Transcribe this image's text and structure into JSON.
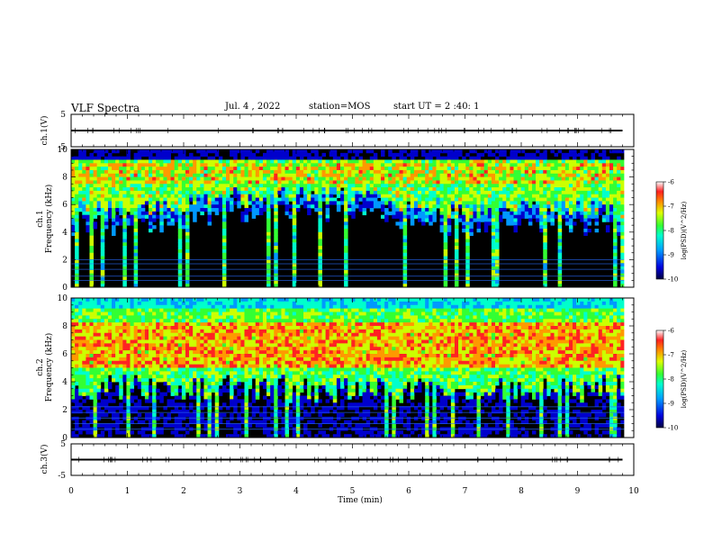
{
  "header": {
    "title": "VLF Spectra",
    "date": "Jul. 4 , 2022",
    "station": "station=MOS",
    "start": "start UT = 2 :40: 1"
  },
  "chart_data": [
    {
      "type": "line",
      "panel": "ch1-waveform",
      "ylabel": "ch.1(V)",
      "ylim": [
        -5,
        5
      ],
      "yticks": [
        "5",
        "-5"
      ],
      "xlim": [
        0,
        10
      ],
      "series": [
        {
          "values": [
            0,
            0,
            0,
            0,
            0,
            0,
            0,
            0,
            0,
            0,
            0
          ]
        }
      ],
      "x": [
        0,
        1,
        2,
        3,
        4,
        5,
        6,
        7,
        8,
        9,
        9.8
      ]
    },
    {
      "type": "heatmap",
      "panel": "ch1-spectrogram",
      "ylabel": "ch.1\nFrequency (kHz)",
      "ylim": [
        0,
        10
      ],
      "yticks": [
        "0",
        "2",
        "4",
        "6",
        "8",
        "10"
      ],
      "xlim": [
        0,
        10
      ],
      "colorbar": {
        "label": "log(PSD)(V^2/Hz)",
        "ticks": [
          "-6",
          "-7",
          "-8",
          "-9",
          "-10"
        ],
        "range": [
          -10,
          -6
        ]
      },
      "time_min": [
        0,
        1,
        2,
        3,
        4,
        5,
        6,
        7,
        8,
        9,
        9.8
      ],
      "upper_band_khz": [
        5.8,
        5.5,
        6.0,
        6.5,
        7.0,
        6.5,
        6.0,
        5.5,
        6.0,
        5.8,
        5.5
      ],
      "narrowband_khz": [
        0.5,
        0.8,
        1.3,
        1.7,
        2.0
      ]
    },
    {
      "type": "heatmap",
      "panel": "ch2-spectrogram",
      "ylabel": "ch.2\nFrequency (kHz)",
      "ylim": [
        0,
        10
      ],
      "yticks": [
        "0",
        "2",
        "4",
        "6",
        "8",
        "10"
      ],
      "xlim": [
        0,
        10
      ],
      "colorbar": {
        "label": "log(PSD)(V^2/Hz)",
        "ticks": [
          "-6",
          "-7",
          "-8",
          "-9",
          "-10"
        ],
        "range": [
          -10,
          -6
        ]
      },
      "time_min": [
        0,
        1,
        2,
        3,
        4,
        5,
        6,
        7,
        8,
        9,
        9.8
      ],
      "intense_band_khz": [
        [
          5,
          8
        ],
        [
          5,
          8
        ],
        [
          5,
          8
        ],
        [
          5,
          8
        ],
        [
          5,
          8
        ],
        [
          5,
          8
        ],
        [
          5,
          8
        ],
        [
          5,
          8
        ],
        [
          5,
          8
        ],
        [
          5,
          8
        ],
        [
          5,
          8
        ]
      ],
      "narrowband_khz": [
        0.6,
        1.0,
        1.4,
        1.8,
        2.2
      ]
    },
    {
      "type": "line",
      "panel": "ch3-waveform",
      "ylabel": "ch.3(V)",
      "ylim": [
        -5,
        5
      ],
      "yticks": [
        "5",
        "-5"
      ],
      "xlim": [
        0,
        10
      ],
      "series": [
        {
          "values": [
            0,
            0,
            0,
            0,
            0,
            0,
            0,
            0,
            0,
            0,
            0
          ]
        }
      ],
      "x": [
        0,
        1,
        2,
        3,
        4,
        5,
        6,
        7,
        8,
        9,
        9.8
      ]
    }
  ],
  "xaxis": {
    "label": "Time (min)",
    "ticks": [
      "0",
      "1",
      "2",
      "3",
      "4",
      "5",
      "6",
      "7",
      "8",
      "9",
      "10"
    ]
  },
  "colors": {
    "bg": "#ffffff",
    "ink": "#000000",
    "colormap": [
      "#000033",
      "#0000cc",
      "#0099ff",
      "#00ffcc",
      "#33ff33",
      "#ccff00",
      "#ff9900",
      "#ff2222",
      "#ffffff"
    ]
  }
}
